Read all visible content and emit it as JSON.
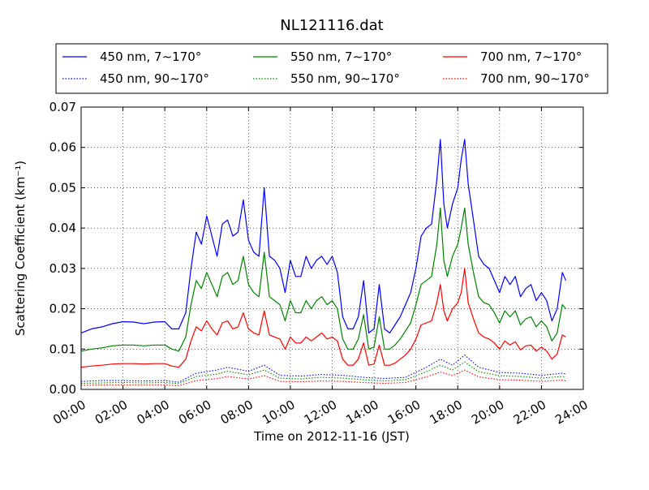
{
  "chart_data": {
    "type": "line",
    "title": "NL121116.dat",
    "xlabel": "Time on 2012-11-16 (JST)",
    "ylabel": "Scattering Coefficient (km⁻¹)",
    "xlim": [
      "2012-11-16 00:00",
      "2012-11-17 00:00"
    ],
    "ylim": [
      0,
      0.07
    ],
    "x_ticks": [
      "00:00",
      "02:00",
      "04:00",
      "06:00",
      "08:00",
      "10:00",
      "12:00",
      "14:00",
      "16:00",
      "18:00",
      "20:00",
      "22:00",
      "24:00"
    ],
    "y_ticks": [
      "0.00",
      "0.01",
      "0.02",
      "0.03",
      "0.04",
      "0.05",
      "0.06",
      "0.07"
    ],
    "grid": true,
    "legend_position": "top",
    "series": [
      {
        "name": "450 nm, 7∼170°",
        "color": "#0000ff",
        "style": "solid",
        "x": [
          "2012-11-16 00:00",
          "2012-11-16 00:30",
          "2012-11-16 01:00",
          "2012-11-16 01:30",
          "2012-11-16 02:00",
          "2012-11-16 02:30",
          "2012-11-16 03:00",
          "2012-11-16 03:30",
          "2012-11-16 04:00",
          "2012-11-16 04:20",
          "2012-11-16 04:40",
          "2012-11-16 05:00",
          "2012-11-16 05:15",
          "2012-11-16 05:30",
          "2012-11-16 05:45",
          "2012-11-16 06:00",
          "2012-11-16 06:15",
          "2012-11-16 06:30",
          "2012-11-16 06:45",
          "2012-11-16 07:00",
          "2012-11-16 07:15",
          "2012-11-16 07:30",
          "2012-11-16 07:45",
          "2012-11-16 08:00",
          "2012-11-16 08:15",
          "2012-11-16 08:30",
          "2012-11-16 08:45",
          "2012-11-16 09:00",
          "2012-11-16 09:15",
          "2012-11-16 09:30",
          "2012-11-16 09:45",
          "2012-11-16 10:00",
          "2012-11-16 10:15",
          "2012-11-16 10:30",
          "2012-11-16 10:45",
          "2012-11-16 11:00",
          "2012-11-16 11:15",
          "2012-11-16 11:30",
          "2012-11-16 11:45",
          "2012-11-16 12:00",
          "2012-11-16 12:15",
          "2012-11-16 12:30",
          "2012-11-16 12:45",
          "2012-11-16 13:00",
          "2012-11-16 13:15",
          "2012-11-16 13:30",
          "2012-11-16 13:45",
          "2012-11-16 14:00",
          "2012-11-16 14:15",
          "2012-11-16 14:30",
          "2012-11-16 14:45",
          "2012-11-16 15:00",
          "2012-11-16 15:15",
          "2012-11-16 15:30",
          "2012-11-16 15:45",
          "2012-11-16 16:00",
          "2012-11-16 16:15",
          "2012-11-16 16:30",
          "2012-11-16 16:45",
          "2012-11-16 17:00",
          "2012-11-16 17:10",
          "2012-11-16 17:20",
          "2012-11-16 17:30",
          "2012-11-16 17:45",
          "2012-11-16 18:00",
          "2012-11-16 18:10",
          "2012-11-16 18:20",
          "2012-11-16 18:30",
          "2012-11-16 18:45",
          "2012-11-16 19:00",
          "2012-11-16 19:15",
          "2012-11-16 19:30",
          "2012-11-16 19:45",
          "2012-11-16 20:00",
          "2012-11-16 20:15",
          "2012-11-16 20:30",
          "2012-11-16 20:45",
          "2012-11-16 21:00",
          "2012-11-16 21:15",
          "2012-11-16 21:30",
          "2012-11-16 21:45",
          "2012-11-16 22:00",
          "2012-11-16 22:15",
          "2012-11-16 22:30",
          "2012-11-16 22:45",
          "2012-11-16 23:00",
          "2012-11-16 23:10"
        ],
        "values": [
          0.014,
          0.015,
          0.0155,
          0.0163,
          0.0168,
          0.0167,
          0.0163,
          0.0167,
          0.0168,
          0.015,
          0.015,
          0.019,
          0.03,
          0.039,
          0.036,
          0.043,
          0.038,
          0.033,
          0.041,
          0.042,
          0.038,
          0.039,
          0.047,
          0.037,
          0.034,
          0.033,
          0.05,
          0.033,
          0.032,
          0.03,
          0.024,
          0.032,
          0.028,
          0.028,
          0.033,
          0.03,
          0.032,
          0.033,
          0.031,
          0.033,
          0.029,
          0.018,
          0.015,
          0.015,
          0.018,
          0.027,
          0.014,
          0.015,
          0.026,
          0.015,
          0.014,
          0.016,
          0.018,
          0.021,
          0.024,
          0.03,
          0.038,
          0.04,
          0.041,
          0.052,
          0.062,
          0.046,
          0.04,
          0.046,
          0.05,
          0.057,
          0.062,
          0.051,
          0.042,
          0.033,
          0.031,
          0.03,
          0.027,
          0.024,
          0.028,
          0.026,
          0.028,
          0.023,
          0.025,
          0.026,
          0.022,
          0.024,
          0.022,
          0.017,
          0.02,
          0.029,
          0.027
        ]
      },
      {
        "name": "550 nm, 7∼170°",
        "color": "#008000",
        "style": "solid",
        "x": [
          "2012-11-16 00:00",
          "2012-11-16 00:30",
          "2012-11-16 01:00",
          "2012-11-16 01:30",
          "2012-11-16 02:00",
          "2012-11-16 02:30",
          "2012-11-16 03:00",
          "2012-11-16 03:30",
          "2012-11-16 04:00",
          "2012-11-16 04:20",
          "2012-11-16 04:40",
          "2012-11-16 05:00",
          "2012-11-16 05:15",
          "2012-11-16 05:30",
          "2012-11-16 05:45",
          "2012-11-16 06:00",
          "2012-11-16 06:15",
          "2012-11-16 06:30",
          "2012-11-16 06:45",
          "2012-11-16 07:00",
          "2012-11-16 07:15",
          "2012-11-16 07:30",
          "2012-11-16 07:45",
          "2012-11-16 08:00",
          "2012-11-16 08:15",
          "2012-11-16 08:30",
          "2012-11-16 08:45",
          "2012-11-16 09:00",
          "2012-11-16 09:15",
          "2012-11-16 09:30",
          "2012-11-16 09:45",
          "2012-11-16 10:00",
          "2012-11-16 10:15",
          "2012-11-16 10:30",
          "2012-11-16 10:45",
          "2012-11-16 11:00",
          "2012-11-16 11:15",
          "2012-11-16 11:30",
          "2012-11-16 11:45",
          "2012-11-16 12:00",
          "2012-11-16 12:15",
          "2012-11-16 12:30",
          "2012-11-16 12:45",
          "2012-11-16 13:00",
          "2012-11-16 13:15",
          "2012-11-16 13:30",
          "2012-11-16 13:45",
          "2012-11-16 14:00",
          "2012-11-16 14:15",
          "2012-11-16 14:30",
          "2012-11-16 14:45",
          "2012-11-16 15:00",
          "2012-11-16 15:15",
          "2012-11-16 15:30",
          "2012-11-16 15:45",
          "2012-11-16 16:00",
          "2012-11-16 16:15",
          "2012-11-16 16:30",
          "2012-11-16 16:45",
          "2012-11-16 17:00",
          "2012-11-16 17:10",
          "2012-11-16 17:20",
          "2012-11-16 17:30",
          "2012-11-16 17:45",
          "2012-11-16 18:00",
          "2012-11-16 18:10",
          "2012-11-16 18:20",
          "2012-11-16 18:30",
          "2012-11-16 18:45",
          "2012-11-16 19:00",
          "2012-11-16 19:15",
          "2012-11-16 19:30",
          "2012-11-16 19:45",
          "2012-11-16 20:00",
          "2012-11-16 20:15",
          "2012-11-16 20:30",
          "2012-11-16 20:45",
          "2012-11-16 21:00",
          "2012-11-16 21:15",
          "2012-11-16 21:30",
          "2012-11-16 21:45",
          "2012-11-16 22:00",
          "2012-11-16 22:15",
          "2012-11-16 22:30",
          "2012-11-16 22:45",
          "2012-11-16 23:00",
          "2012-11-16 23:10"
        ],
        "values": [
          0.0095,
          0.01,
          0.0103,
          0.0108,
          0.011,
          0.011,
          0.0108,
          0.011,
          0.011,
          0.01,
          0.0095,
          0.013,
          0.021,
          0.027,
          0.025,
          0.029,
          0.026,
          0.023,
          0.028,
          0.029,
          0.026,
          0.027,
          0.033,
          0.026,
          0.024,
          0.023,
          0.034,
          0.023,
          0.022,
          0.021,
          0.017,
          0.022,
          0.019,
          0.019,
          0.022,
          0.02,
          0.022,
          0.023,
          0.021,
          0.022,
          0.02,
          0.0125,
          0.01,
          0.01,
          0.0125,
          0.0185,
          0.01,
          0.0105,
          0.018,
          0.01,
          0.01,
          0.011,
          0.0125,
          0.0145,
          0.0165,
          0.021,
          0.026,
          0.027,
          0.028,
          0.036,
          0.045,
          0.032,
          0.028,
          0.033,
          0.036,
          0.04,
          0.045,
          0.036,
          0.029,
          0.023,
          0.0215,
          0.021,
          0.019,
          0.0165,
          0.0195,
          0.018,
          0.0195,
          0.016,
          0.0175,
          0.018,
          0.0155,
          0.017,
          0.0155,
          0.012,
          0.014,
          0.021,
          0.02
        ]
      },
      {
        "name": "700 nm, 7∼170°",
        "color": "#ff0000",
        "style": "solid",
        "x": [
          "2012-11-16 00:00",
          "2012-11-16 00:30",
          "2012-11-16 01:00",
          "2012-11-16 01:30",
          "2012-11-16 02:00",
          "2012-11-16 02:30",
          "2012-11-16 03:00",
          "2012-11-16 03:30",
          "2012-11-16 04:00",
          "2012-11-16 04:20",
          "2012-11-16 04:40",
          "2012-11-16 05:00",
          "2012-11-16 05:15",
          "2012-11-16 05:30",
          "2012-11-16 05:45",
          "2012-11-16 06:00",
          "2012-11-16 06:15",
          "2012-11-16 06:30",
          "2012-11-16 06:45",
          "2012-11-16 07:00",
          "2012-11-16 07:15",
          "2012-11-16 07:30",
          "2012-11-16 07:45",
          "2012-11-16 08:00",
          "2012-11-16 08:15",
          "2012-11-16 08:30",
          "2012-11-16 08:45",
          "2012-11-16 09:00",
          "2012-11-16 09:15",
          "2012-11-16 09:30",
          "2012-11-16 09:45",
          "2012-11-16 10:00",
          "2012-11-16 10:15",
          "2012-11-16 10:30",
          "2012-11-16 10:45",
          "2012-11-16 11:00",
          "2012-11-16 11:15",
          "2012-11-16 11:30",
          "2012-11-16 11:45",
          "2012-11-16 12:00",
          "2012-11-16 12:15",
          "2012-11-16 12:30",
          "2012-11-16 12:45",
          "2012-11-16 13:00",
          "2012-11-16 13:15",
          "2012-11-16 13:30",
          "2012-11-16 13:45",
          "2012-11-16 14:00",
          "2012-11-16 14:15",
          "2012-11-16 14:30",
          "2012-11-16 14:45",
          "2012-11-16 15:00",
          "2012-11-16 15:15",
          "2012-11-16 15:30",
          "2012-11-16 15:45",
          "2012-11-16 16:00",
          "2012-11-16 16:15",
          "2012-11-16 16:30",
          "2012-11-16 16:45",
          "2012-11-16 17:00",
          "2012-11-16 17:10",
          "2012-11-16 17:20",
          "2012-11-16 17:30",
          "2012-11-16 17:45",
          "2012-11-16 18:00",
          "2012-11-16 18:10",
          "2012-11-16 18:20",
          "2012-11-16 18:30",
          "2012-11-16 18:45",
          "2012-11-16 19:00",
          "2012-11-16 19:15",
          "2012-11-16 19:30",
          "2012-11-16 19:45",
          "2012-11-16 20:00",
          "2012-11-16 20:15",
          "2012-11-16 20:30",
          "2012-11-16 20:45",
          "2012-11-16 21:00",
          "2012-11-16 21:15",
          "2012-11-16 21:30",
          "2012-11-16 21:45",
          "2012-11-16 22:00",
          "2012-11-16 22:15",
          "2012-11-16 22:30",
          "2012-11-16 22:45",
          "2012-11-16 23:00",
          "2012-11-16 23:10"
        ],
        "values": [
          0.0055,
          0.0058,
          0.006,
          0.0063,
          0.0064,
          0.0064,
          0.0063,
          0.0064,
          0.0064,
          0.0058,
          0.0055,
          0.0075,
          0.012,
          0.0155,
          0.0145,
          0.017,
          0.015,
          0.0135,
          0.0165,
          0.017,
          0.015,
          0.0155,
          0.019,
          0.015,
          0.014,
          0.0135,
          0.0195,
          0.0135,
          0.013,
          0.0125,
          0.01,
          0.013,
          0.0115,
          0.0115,
          0.013,
          0.012,
          0.013,
          0.014,
          0.0125,
          0.013,
          0.012,
          0.0075,
          0.006,
          0.006,
          0.0075,
          0.0115,
          0.006,
          0.0063,
          0.011,
          0.006,
          0.006,
          0.0065,
          0.0075,
          0.0085,
          0.01,
          0.0125,
          0.016,
          0.0165,
          0.017,
          0.0215,
          0.026,
          0.0195,
          0.017,
          0.02,
          0.0215,
          0.024,
          0.03,
          0.0215,
          0.0175,
          0.014,
          0.013,
          0.0125,
          0.0115,
          0.01,
          0.012,
          0.011,
          0.0118,
          0.0098,
          0.0108,
          0.011,
          0.0095,
          0.0105,
          0.0095,
          0.0075,
          0.0088,
          0.0135,
          0.013
        ]
      },
      {
        "name": "450 nm, 90∼170°",
        "color": "#0000ff",
        "style": "dotted",
        "x": [
          "2012-11-16 00:00",
          "2012-11-16 01:00",
          "2012-11-16 02:00",
          "2012-11-16 03:00",
          "2012-11-16 04:00",
          "2012-11-16 04:40",
          "2012-11-16 05:30",
          "2012-11-16 06:30",
          "2012-11-16 07:00",
          "2012-11-16 08:00",
          "2012-11-16 08:45",
          "2012-11-16 09:30",
          "2012-11-16 10:30",
          "2012-11-16 11:30",
          "2012-11-16 12:30",
          "2012-11-16 13:30",
          "2012-11-16 14:30",
          "2012-11-16 15:30",
          "2012-11-16 16:30",
          "2012-11-16 17:10",
          "2012-11-16 17:45",
          "2012-11-16 18:20",
          "2012-11-16 19:00",
          "2012-11-16 20:00",
          "2012-11-16 21:00",
          "2012-11-16 22:00",
          "2012-11-16 23:00",
          "2012-11-16 23:10"
        ],
        "values": [
          0.002,
          0.0022,
          0.0022,
          0.0021,
          0.0022,
          0.0018,
          0.004,
          0.0048,
          0.0055,
          0.0045,
          0.006,
          0.0035,
          0.0033,
          0.0037,
          0.0035,
          0.003,
          0.0027,
          0.003,
          0.0055,
          0.0075,
          0.006,
          0.0085,
          0.0055,
          0.0042,
          0.004,
          0.0035,
          0.004,
          0.0038
        ]
      },
      {
        "name": "550 nm, 90∼170°",
        "color": "#008000",
        "style": "dotted",
        "x": [
          "2012-11-16 00:00",
          "2012-11-16 01:00",
          "2012-11-16 02:00",
          "2012-11-16 03:00",
          "2012-11-16 04:00",
          "2012-11-16 04:40",
          "2012-11-16 05:30",
          "2012-11-16 06:30",
          "2012-11-16 07:00",
          "2012-11-16 08:00",
          "2012-11-16 08:45",
          "2012-11-16 09:30",
          "2012-11-16 10:30",
          "2012-11-16 11:30",
          "2012-11-16 12:30",
          "2012-11-16 13:30",
          "2012-11-16 14:30",
          "2012-11-16 15:30",
          "2012-11-16 16:30",
          "2012-11-16 17:10",
          "2012-11-16 17:45",
          "2012-11-16 18:20",
          "2012-11-16 19:00",
          "2012-11-16 20:00",
          "2012-11-16 21:00",
          "2012-11-16 22:00",
          "2012-11-16 23:00",
          "2012-11-16 23:10"
        ],
        "values": [
          0.0015,
          0.0016,
          0.0017,
          0.0016,
          0.0017,
          0.0014,
          0.0032,
          0.0038,
          0.0045,
          0.0036,
          0.0048,
          0.0028,
          0.0026,
          0.003,
          0.0028,
          0.0024,
          0.0021,
          0.0024,
          0.0044,
          0.006,
          0.0048,
          0.0068,
          0.0044,
          0.0034,
          0.0032,
          0.0028,
          0.0032,
          0.003
        ]
      },
      {
        "name": "700 nm, 90∼170°",
        "color": "#ff0000",
        "style": "dotted",
        "x": [
          "2012-11-16 00:00",
          "2012-11-16 01:00",
          "2012-11-16 02:00",
          "2012-11-16 03:00",
          "2012-11-16 04:00",
          "2012-11-16 04:40",
          "2012-11-16 05:30",
          "2012-11-16 06:30",
          "2012-11-16 07:00",
          "2012-11-16 08:00",
          "2012-11-16 08:45",
          "2012-11-16 09:30",
          "2012-11-16 10:30",
          "2012-11-16 11:30",
          "2012-11-16 12:30",
          "2012-11-16 13:30",
          "2012-11-16 14:30",
          "2012-11-16 15:30",
          "2012-11-16 16:30",
          "2012-11-16 17:10",
          "2012-11-16 17:45",
          "2012-11-16 18:20",
          "2012-11-16 19:00",
          "2012-11-16 20:00",
          "2012-11-16 21:00",
          "2012-11-16 22:00",
          "2012-11-16 23:00",
          "2012-11-16 23:10"
        ],
        "values": [
          0.001,
          0.0011,
          0.0011,
          0.0011,
          0.0011,
          0.0009,
          0.0022,
          0.0027,
          0.0032,
          0.0026,
          0.0034,
          0.002,
          0.0019,
          0.0021,
          0.002,
          0.0017,
          0.0015,
          0.0017,
          0.0031,
          0.0043,
          0.0034,
          0.0048,
          0.0031,
          0.0024,
          0.0023,
          0.002,
          0.0023,
          0.0021
        ]
      }
    ]
  }
}
